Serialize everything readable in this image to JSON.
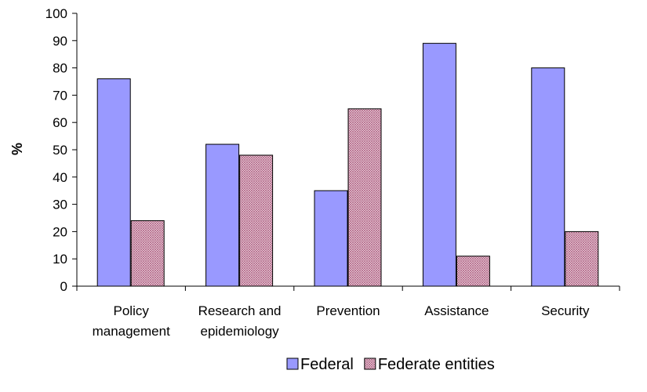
{
  "chart_data": {
    "type": "bar",
    "title": "",
    "xlabel": "",
    "ylabel": "%",
    "ylim": [
      0,
      100
    ],
    "ytick_step": 10,
    "grid": false,
    "legend_position": "bottom",
    "categories": [
      [
        "Policy",
        "management"
      ],
      [
        "Research and",
        "epidemiology"
      ],
      [
        "Prevention"
      ],
      [
        "Assistance"
      ],
      [
        "Security"
      ]
    ],
    "series": [
      {
        "name": "Federal",
        "values": [
          76,
          52,
          35,
          89,
          80
        ],
        "color": "#9999ff",
        "pattern": "solid"
      },
      {
        "name": "Federate entities",
        "values": [
          24,
          48,
          65,
          11,
          20
        ],
        "color": "#993366",
        "pattern": "hatched"
      }
    ]
  }
}
